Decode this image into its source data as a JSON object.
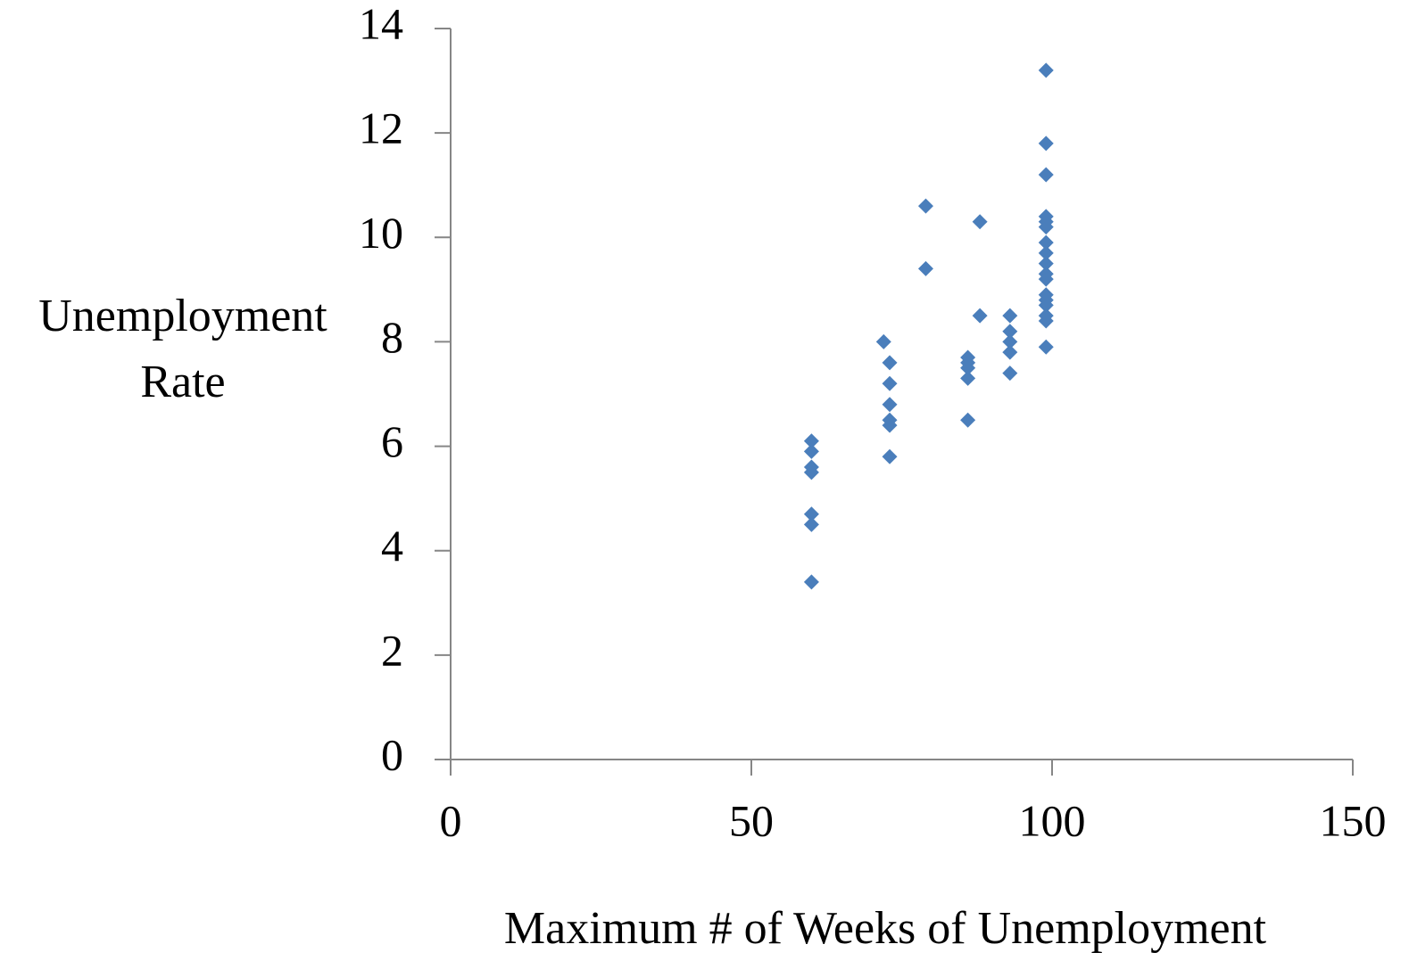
{
  "chart_data": {
    "type": "scatter",
    "x_label": "Maximum # of Weeks of Unemployment",
    "y_label": "Unemployment Rate",
    "color": "#4a7ebb",
    "xlim": [
      0,
      150
    ],
    "xticks": [
      0,
      50,
      100,
      150
    ],
    "ylim": [
      0,
      14
    ],
    "yticks": [
      0,
      2,
      4,
      6,
      8,
      10,
      12,
      14
    ],
    "x": [
      60,
      60,
      60,
      60,
      60,
      60,
      60,
      72,
      73,
      73,
      73,
      73,
      73,
      73,
      79,
      79,
      86,
      86,
      86,
      86,
      86,
      88,
      88,
      93,
      93,
      93,
      93,
      93,
      99,
      99,
      99,
      99,
      99,
      99,
      99,
      99,
      99,
      99,
      99,
      99,
      99,
      99,
      99,
      99,
      99
    ],
    "values": [
      6.1,
      5.9,
      5.6,
      5.5,
      4.7,
      4.5,
      3.4,
      8.0,
      7.6,
      7.2,
      6.8,
      6.5,
      6.4,
      5.8,
      10.6,
      9.4,
      7.7,
      7.6,
      7.5,
      7.3,
      6.5,
      10.3,
      8.5,
      8.5,
      8.2,
      8.0,
      7.8,
      7.4,
      13.2,
      11.8,
      11.2,
      10.4,
      10.3,
      10.2,
      9.9,
      9.7,
      9.5,
      9.3,
      9.2,
      8.9,
      8.8,
      8.7,
      8.5,
      8.4,
      7.9
    ]
  }
}
